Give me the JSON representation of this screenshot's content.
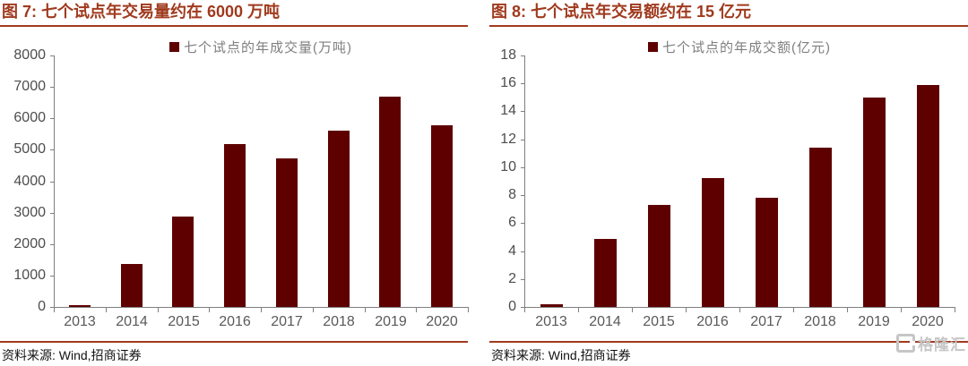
{
  "colors": {
    "background": "#FFFFFF",
    "bar": "#5E0000",
    "accent": "#A03A1E",
    "legend_text": "#7F7F7F",
    "axis_line": "#7F7F7F",
    "tick_label": "#4D4D4D",
    "source_text": "#111111",
    "watermark": "#C6C6C6"
  },
  "watermark": {
    "text": "格隆汇"
  },
  "chart_data": [
    {
      "type": "bar",
      "title": "图 7: 七个试点年交易量约在 6000 万吨",
      "legend": "七个试点的年成交量(万吨)",
      "categories": [
        "2013",
        "2014",
        "2015",
        "2016",
        "2017",
        "2018",
        "2019",
        "2020"
      ],
      "values": [
        40,
        1360,
        2880,
        5170,
        4730,
        5620,
        6680,
        5780
      ],
      "xlabel": "",
      "ylabel": "",
      "ylim": [
        0,
        8000
      ],
      "ytick_step": 1000,
      "grid": false,
      "legend_position": "top-center",
      "source": "资料来源: Wind,招商证券"
    },
    {
      "type": "bar",
      "title": "图 8: 七个试点年交易额约在 15 亿元",
      "legend": "七个试点的年成交额(亿元)",
      "categories": [
        "2013",
        "2014",
        "2015",
        "2016",
        "2017",
        "2018",
        "2019",
        "2020"
      ],
      "values": [
        0.2,
        4.9,
        7.3,
        9.2,
        7.8,
        11.4,
        15.0,
        15.9
      ],
      "xlabel": "",
      "ylabel": "",
      "ylim": [
        0,
        18
      ],
      "ytick_step": 2,
      "grid": false,
      "legend_position": "top-center",
      "source": "资料来源: Wind,招商证券"
    }
  ]
}
